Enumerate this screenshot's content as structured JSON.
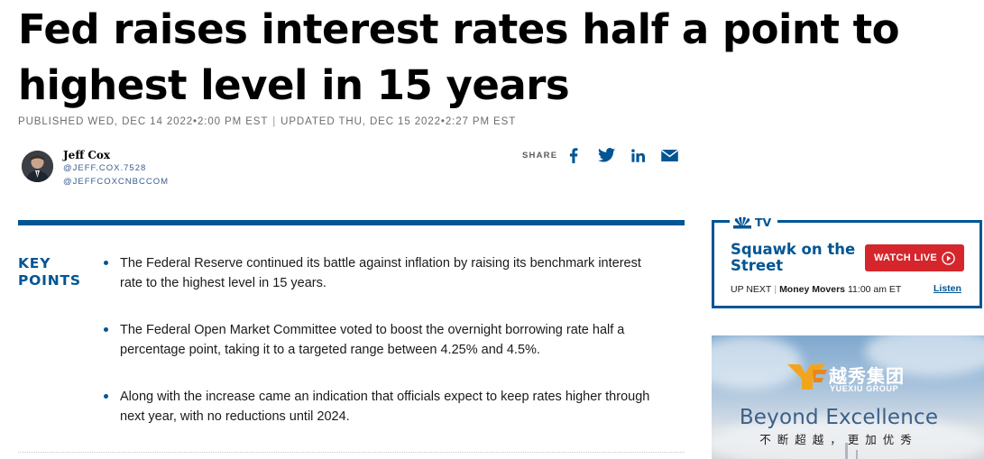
{
  "article": {
    "headline": "Fed raises interest rates half a point to highest level in 15 years",
    "published": "PUBLISHED WED, DEC 14 2022•2:00 PM EST",
    "separator": "|",
    "updated": "UPDATED THU, DEC 15 2022•2:27 PM EST"
  },
  "author": {
    "name": "Jeff Cox",
    "handle_1": "@JEFF.COX.7528",
    "handle_2": "@JEFFCOXCNBCCOM",
    "avatar_icon": "author-photo"
  },
  "share": {
    "label": "SHARE",
    "icons": [
      "facebook-icon",
      "twitter-icon",
      "linkedin-icon",
      "email-icon"
    ],
    "color": "#005594"
  },
  "key_points": {
    "heading": "KEY POINTS",
    "items": [
      "The Federal Reserve continued its battle against inflation by raising its benchmark interest rate to the highest level in 15 years.",
      "The Federal Open Market Committee voted to boost the overnight borrowing rate half a percentage point, taking it to a targeted range between 4.25% and 4.5%.",
      "Along with the increase came an indication that officials expect to keep rates higher through next year, with no reductions until 2024."
    ]
  },
  "tv_widget": {
    "brand": "TV",
    "show": "Squawk on the Street",
    "watch_label": "WATCH LIVE",
    "up_next_label": "UP NEXT",
    "up_next_separator": "|",
    "next_show": "Money Movers",
    "next_time": "11:00 am ET",
    "listen_label": "Listen",
    "accent_color": "#005594",
    "button_color": "#d4262c"
  },
  "ad": {
    "logo_cn": "越秀集团",
    "logo_en": "YUEXIU GROUP",
    "tagline": "Beyond Excellence",
    "subline": "不断超越，更加优秀"
  },
  "colors": {
    "brand_blue": "#005594",
    "text": "#000000",
    "meta_gray": "#6d6d6d"
  }
}
